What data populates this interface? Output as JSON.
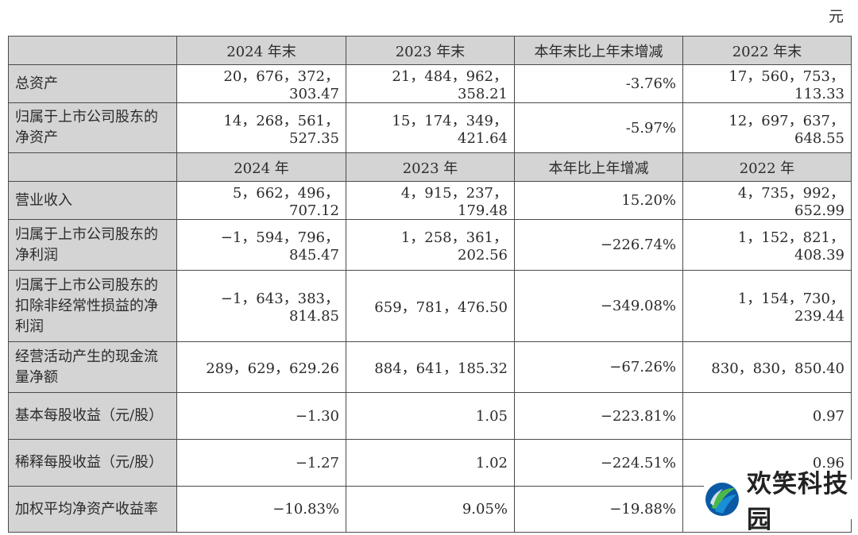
{
  "unit": "元",
  "table": {
    "header1": [
      "",
      "2024 年末",
      "2023 年末",
      "本年末比上年末增减",
      "2022 年末"
    ],
    "rows1": [
      {
        "label": "总资产",
        "values": [
          "20，676，372，303.47",
          "21，484，962，358.21",
          "-3.76%",
          "17，560，753，113.33"
        ]
      },
      {
        "label": "归属于上市公司股东的净资产",
        "values": [
          "14，268，561，527.35",
          "15，174，349，421.64",
          "-5.97%",
          "12，697，637，648.55"
        ]
      }
    ],
    "header2": [
      "",
      "2024 年",
      "2023 年",
      "本年比上年增减",
      "2022 年"
    ],
    "rows2": [
      {
        "label": "营业收入",
        "values": [
          "5，662，496，707.12",
          "4，915，237，179.48",
          "15.20%",
          "4，735，992，652.99"
        ]
      },
      {
        "label": "归属于上市公司股东的净利润",
        "values": [
          "−1，594，796，845.47",
          "1，258，361，202.56",
          "−226.74%",
          "1，152，821，408.39"
        ]
      },
      {
        "label": "归属于上市公司股东的扣除非经常性损益的净利润",
        "values": [
          "−1，643，383，814.85",
          "659，781，476.50",
          "−349.08%",
          "1，154，730，239.44"
        ]
      },
      {
        "label": "经营活动产生的现金流量净额",
        "values": [
          "289，629，629.26",
          "884，641，185.32",
          "−67.26%",
          "830，830，850.40"
        ]
      },
      {
        "label": "基本每股收益（元/股）",
        "values": [
          "−1.30",
          "1.05",
          "−223.81%",
          "0.97"
        ]
      },
      {
        "label": "稀释每股收益（元/股）",
        "values": [
          "−1.27",
          "1.02",
          "−224.51%",
          "0.96"
        ]
      },
      {
        "label": "加权平均净资产收益率",
        "values": [
          "−10.83%",
          "9.05%",
          "−19.88%",
          ""
        ]
      }
    ]
  },
  "watermark": {
    "text": "欢笑科技园",
    "logo": "leaf-swirl-logo",
    "colors": [
      "#1a8fd8",
      "#4cb84a",
      "#0b5aa6"
    ]
  }
}
